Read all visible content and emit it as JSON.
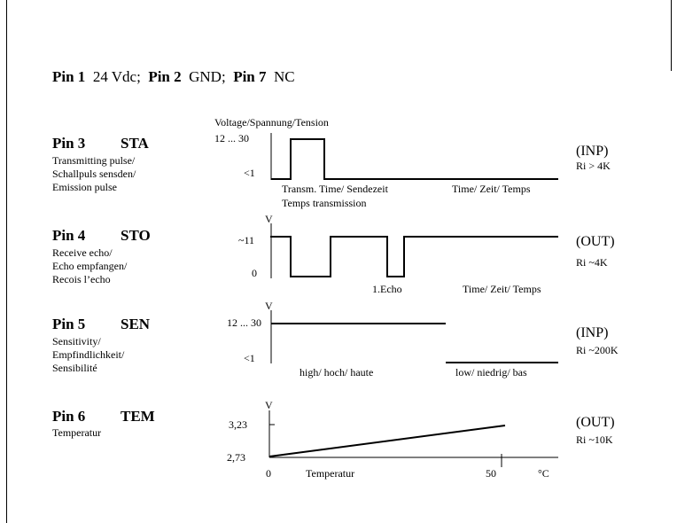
{
  "header": {
    "p1_label": "Pin 1",
    "p1_value": "24 Vdc;",
    "p2_label": "Pin 2",
    "p2_value": "GND;",
    "p7_label": "Pin 7",
    "p7_value": "NC"
  },
  "voltage_axis_label": "Voltage/Spannung/Tension",
  "pins": {
    "sta": {
      "pin": "Pin 3",
      "code": "STA",
      "desc": [
        "Transmitting pulse/",
        "Schallpuls sensden/",
        "Emission pulse"
      ],
      "y_high": "12 ... 30",
      "y_low": "<1",
      "label_a": "Transm. Time/ Sendezeit",
      "label_a2": "Temps transmission",
      "label_time": "Time/ Zeit/ Temps",
      "io": "(INP)",
      "ri": "Ri > 4K"
    },
    "sto": {
      "pin": "Pin 4",
      "code": "STO",
      "desc": [
        "Receive echo/",
        "Echo empfangen/",
        "Recois l’echo"
      ],
      "v": "V",
      "y_high": "~11",
      "y_low": "0",
      "label_echo": "1.Echo",
      "label_time": "Time/ Zeit/ Temps",
      "io": "(OUT)",
      "ri": "Ri ~4K"
    },
    "sen": {
      "pin": "Pin 5",
      "code": "SEN",
      "desc": [
        "Sensitivity/",
        "Empfindlichkeit/",
        "Sensibilité"
      ],
      "v": "V",
      "y_high": "12 ... 30",
      "y_low": "<1",
      "label_high": "high/ hoch/ haute",
      "label_low": "low/ niedrig/ bas",
      "io": "(INP)",
      "ri": "Ri ~200K"
    },
    "tem": {
      "pin": "Pin 6",
      "code": "TEM",
      "desc": [
        "Temperatur"
      ],
      "v": "V",
      "y_high": "3,23",
      "y_low": "2,73",
      "x_zero": "0",
      "x_label": "Temperatur",
      "x_fifty": "50",
      "x_unit": "°C",
      "io": "(OUT)",
      "ri": "Ri ~10K"
    }
  }
}
